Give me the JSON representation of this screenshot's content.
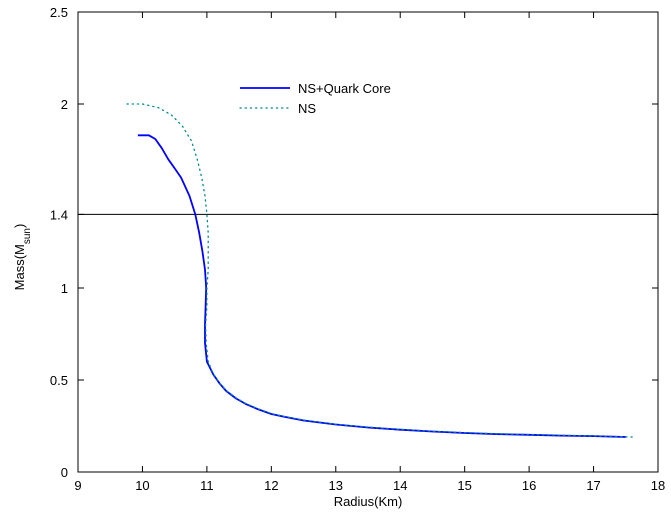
{
  "chart_data": {
    "type": "line",
    "title": "",
    "xlabel": "Radius(Km)",
    "ylabel": {
      "main": "Mass(M",
      "sub": "sun",
      "close": ")"
    },
    "xlim": [
      9,
      18
    ],
    "ylim": [
      0,
      2.5
    ],
    "xticks": [
      9,
      10,
      11,
      12,
      13,
      14,
      15,
      16,
      17,
      18
    ],
    "yticks": [
      0,
      0.5,
      1,
      1.4,
      2,
      2.5
    ],
    "ytick_labels": [
      "0",
      "0.5",
      "1",
      "1.4",
      "2",
      "2.5"
    ],
    "hline": {
      "y": 1.4,
      "color": "#000000"
    },
    "legend_position": "top-center",
    "grid": false,
    "series": [
      {
        "name": "NS+Quark Core",
        "style": "solid",
        "color": "#0000ff",
        "points": [
          [
            17.5,
            0.19
          ],
          [
            17.0,
            0.195
          ],
          [
            16.5,
            0.198
          ],
          [
            16.0,
            0.202
          ],
          [
            15.5,
            0.206
          ],
          [
            15.0,
            0.212
          ],
          [
            14.5,
            0.22
          ],
          [
            14.0,
            0.23
          ],
          [
            13.5,
            0.242
          ],
          [
            13.0,
            0.258
          ],
          [
            12.5,
            0.28
          ],
          [
            12.2,
            0.3
          ],
          [
            12.0,
            0.315
          ],
          [
            11.8,
            0.34
          ],
          [
            11.6,
            0.37
          ],
          [
            11.45,
            0.4
          ],
          [
            11.3,
            0.44
          ],
          [
            11.2,
            0.48
          ],
          [
            11.1,
            0.53
          ],
          [
            11.0,
            0.6
          ],
          [
            10.97,
            0.7
          ],
          [
            10.97,
            0.8
          ],
          [
            10.98,
            0.9
          ],
          [
            10.99,
            1.0
          ],
          [
            10.97,
            1.1
          ],
          [
            10.93,
            1.2
          ],
          [
            10.88,
            1.3
          ],
          [
            10.82,
            1.4
          ],
          [
            10.73,
            1.5
          ],
          [
            10.6,
            1.6
          ],
          [
            10.5,
            1.65
          ],
          [
            10.4,
            1.7
          ],
          [
            10.3,
            1.76
          ],
          [
            10.2,
            1.81
          ],
          [
            10.1,
            1.83
          ],
          [
            9.93,
            1.83
          ]
        ]
      },
      {
        "name": "NS",
        "style": "dotted",
        "color": "#008b8b",
        "points": [
          [
            17.6,
            0.19
          ],
          [
            17.0,
            0.196
          ],
          [
            16.5,
            0.2
          ],
          [
            16.0,
            0.204
          ],
          [
            15.5,
            0.208
          ],
          [
            15.0,
            0.214
          ],
          [
            14.5,
            0.222
          ],
          [
            14.0,
            0.232
          ],
          [
            13.5,
            0.244
          ],
          [
            13.0,
            0.26
          ],
          [
            12.5,
            0.282
          ],
          [
            12.2,
            0.302
          ],
          [
            12.0,
            0.318
          ],
          [
            11.8,
            0.343
          ],
          [
            11.6,
            0.373
          ],
          [
            11.45,
            0.403
          ],
          [
            11.3,
            0.443
          ],
          [
            11.2,
            0.483
          ],
          [
            11.1,
            0.533
          ],
          [
            11.02,
            0.6
          ],
          [
            10.99,
            0.7
          ],
          [
            10.98,
            0.8
          ],
          [
            11.0,
            0.9
          ],
          [
            11.0,
            1.0
          ],
          [
            11.02,
            1.1
          ],
          [
            11.02,
            1.2
          ],
          [
            11.02,
            1.3
          ],
          [
            11.0,
            1.4
          ],
          [
            10.97,
            1.5
          ],
          [
            10.92,
            1.6
          ],
          [
            10.85,
            1.7
          ],
          [
            10.76,
            1.8
          ],
          [
            10.62,
            1.88
          ],
          [
            10.45,
            1.94
          ],
          [
            10.25,
            1.98
          ],
          [
            10.0,
            2.0
          ],
          [
            9.7,
            2.0
          ]
        ]
      }
    ]
  }
}
